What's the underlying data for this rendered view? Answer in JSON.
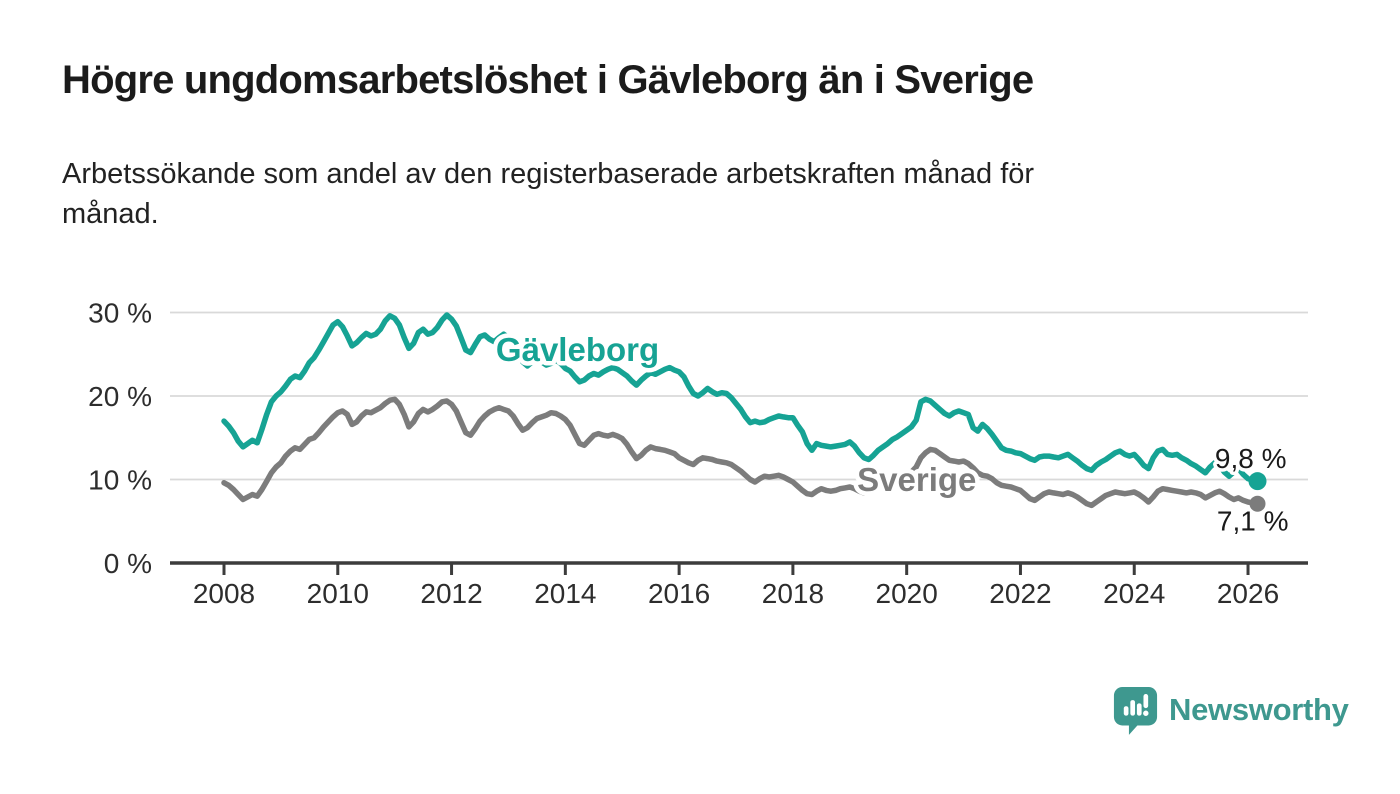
{
  "header": {
    "title": "Högre ungdomsarbetslöshet i Gävleborg än i Sverige",
    "subtitle": "Arbetssökande som andel av den registerbaserade arbetskraften månad för\nmånad."
  },
  "branding": {
    "logo_text": "Newsworthy",
    "logo_icon": "bar-chart-speech-bubble-icon",
    "accent_color": "#3e988f"
  },
  "chart_data": {
    "type": "line",
    "title": "Högre ungdomsarbetslöshet i Gävleborg än i Sverige",
    "subtitle": "Arbetssökande som andel av den registerbaserade arbetskraften månad för månad.",
    "unit": "%",
    "grid": "horizontal",
    "legend_position": "inline-labels",
    "xlim": [
      2007.1,
      2027.1
    ],
    "ylim": [
      0,
      32
    ],
    "x_ticks": [
      2008,
      2010,
      2012,
      2014,
      2016,
      2018,
      2020,
      2022,
      2024,
      2026
    ],
    "x_tick_labels": [
      "2008",
      "2010",
      "2012",
      "2014",
      "2016",
      "2018",
      "2020",
      "2022",
      "2024",
      "2026"
    ],
    "y_ticks": [
      30,
      20,
      10,
      0
    ],
    "y_tick_labels": [
      "30 %",
      "20 %",
      "10 %",
      "0 %"
    ],
    "x_start": 2008.0,
    "x_step_years": 0.08333,
    "series": [
      {
        "id": "gavleborg",
        "name": "Gävleborg",
        "color": "#16a394",
        "end_value": 9.8,
        "end_dot_radius": 9,
        "label_pos": {
          "t": 2012.78,
          "v": 24.2
        },
        "value_label": {
          "text": "9,8 %",
          "dx": 29,
          "dy": -13
        },
        "values": [
          17.0,
          16.4,
          15.6,
          14.6,
          13.9,
          14.3,
          14.7,
          14.4,
          16.0,
          17.8,
          19.3,
          20.0,
          20.5,
          21.2,
          22.0,
          22.4,
          22.2,
          23.0,
          24.0,
          24.6,
          25.5,
          26.5,
          27.5,
          28.5,
          28.9,
          28.3,
          27.2,
          26.0,
          26.4,
          27.0,
          27.5,
          27.2,
          27.4,
          28.0,
          29.0,
          29.6,
          29.3,
          28.5,
          27.0,
          25.7,
          26.3,
          27.6,
          28.0,
          27.4,
          27.6,
          28.2,
          29.1,
          29.7,
          29.2,
          28.4,
          27.0,
          25.5,
          25.2,
          26.2,
          27.1,
          27.3,
          26.8,
          26.5,
          27.0,
          27.4,
          27.0,
          26.3,
          25.2,
          24.1,
          23.6,
          24.1,
          24.5,
          24.1,
          23.7,
          23.9,
          24.3,
          23.9,
          23.3,
          23.0,
          22.3,
          21.7,
          21.9,
          22.4,
          22.7,
          22.5,
          22.9,
          23.2,
          23.4,
          23.2,
          22.8,
          22.4,
          21.8,
          21.3,
          21.9,
          22.4,
          22.8,
          22.6,
          22.9,
          23.2,
          23.4,
          23.1,
          22.9,
          22.3,
          21.2,
          20.3,
          20.0,
          20.4,
          20.9,
          20.5,
          20.2,
          20.4,
          20.3,
          19.8,
          19.1,
          18.4,
          17.5,
          16.8,
          17.0,
          16.8,
          16.9,
          17.2,
          17.4,
          17.6,
          17.5,
          17.4,
          17.4,
          16.5,
          15.7,
          14.3,
          13.5,
          14.3,
          14.1,
          14.0,
          13.9,
          14.0,
          14.1,
          14.2,
          14.5,
          14.0,
          13.2,
          12.6,
          12.4,
          12.9,
          13.5,
          13.9,
          14.3,
          14.8,
          15.1,
          15.5,
          15.9,
          16.3,
          17.1,
          19.3,
          19.6,
          19.4,
          18.9,
          18.4,
          17.9,
          17.6,
          18.0,
          18.2,
          18.0,
          17.8,
          16.2,
          15.8,
          16.6,
          16.1,
          15.4,
          14.6,
          13.8,
          13.5,
          13.4,
          13.2,
          13.1,
          12.8,
          12.5,
          12.3,
          12.7,
          12.8,
          12.8,
          12.7,
          12.6,
          12.8,
          13.0,
          12.6,
          12.2,
          11.7,
          11.3,
          11.1,
          11.7,
          12.1,
          12.4,
          12.8,
          13.2,
          13.4,
          13.0,
          12.8,
          13.0,
          12.4,
          11.7,
          11.3,
          12.6,
          13.4,
          13.6,
          13.0,
          12.9,
          13.0,
          12.6,
          12.3,
          11.9,
          11.6,
          11.2,
          10.8,
          11.5,
          12.0,
          11.7,
          10.9,
          10.4,
          10.9,
          11.3,
          10.6,
          10.1,
          9.9,
          9.8
        ]
      },
      {
        "id": "sverige",
        "name": "Sverige",
        "color": "#7c7c7c",
        "end_value": 7.1,
        "end_dot_radius": 8,
        "label_pos": {
          "t": 2019.13,
          "v": 8.6
        },
        "value_label": {
          "text": "7,1 %",
          "dx": 31,
          "dy": 27
        },
        "values": [
          9.6,
          9.3,
          8.8,
          8.2,
          7.6,
          7.9,
          8.2,
          8.0,
          8.8,
          9.8,
          10.8,
          11.5,
          12.0,
          12.8,
          13.4,
          13.8,
          13.6,
          14.2,
          14.8,
          15.0,
          15.6,
          16.3,
          16.9,
          17.5,
          18.0,
          18.2,
          17.8,
          16.6,
          16.9,
          17.6,
          18.1,
          18.0,
          18.3,
          18.6,
          19.1,
          19.5,
          19.6,
          19.0,
          17.8,
          16.3,
          16.9,
          17.9,
          18.4,
          18.1,
          18.4,
          18.8,
          19.3,
          19.4,
          19.0,
          18.2,
          16.9,
          15.6,
          15.3,
          16.1,
          17.0,
          17.6,
          18.1,
          18.4,
          18.6,
          18.4,
          18.2,
          17.6,
          16.7,
          15.9,
          16.2,
          16.8,
          17.3,
          17.5,
          17.7,
          18.0,
          17.9,
          17.6,
          17.2,
          16.5,
          15.4,
          14.3,
          14.1,
          14.7,
          15.3,
          15.5,
          15.3,
          15.2,
          15.4,
          15.2,
          14.9,
          14.2,
          13.3,
          12.5,
          12.9,
          13.5,
          13.9,
          13.7,
          13.6,
          13.5,
          13.3,
          13.1,
          12.6,
          12.3,
          12.0,
          11.8,
          12.3,
          12.6,
          12.5,
          12.4,
          12.2,
          12.1,
          12.0,
          11.8,
          11.4,
          11.0,
          10.5,
          10.0,
          9.7,
          10.1,
          10.4,
          10.3,
          10.4,
          10.5,
          10.3,
          10.0,
          9.7,
          9.2,
          8.7,
          8.3,
          8.2,
          8.6,
          8.9,
          8.7,
          8.6,
          8.7,
          8.9,
          9.0,
          9.1,
          8.9,
          8.6,
          8.4,
          8.6,
          8.9,
          9.2,
          9.3,
          9.5,
          9.8,
          10.1,
          10.4,
          10.6,
          10.9,
          11.5,
          12.6,
          13.2,
          13.6,
          13.5,
          13.1,
          12.7,
          12.3,
          12.2,
          12.1,
          12.2,
          11.9,
          11.4,
          10.8,
          10.5,
          10.4,
          10.1,
          9.6,
          9.3,
          9.2,
          9.1,
          8.9,
          8.7,
          8.2,
          7.7,
          7.5,
          7.9,
          8.3,
          8.5,
          8.4,
          8.3,
          8.2,
          8.4,
          8.2,
          7.9,
          7.5,
          7.1,
          6.9,
          7.3,
          7.7,
          8.1,
          8.3,
          8.5,
          8.4,
          8.3,
          8.4,
          8.5,
          8.2,
          7.8,
          7.3,
          7.9,
          8.6,
          8.9,
          8.8,
          8.7,
          8.6,
          8.5,
          8.4,
          8.5,
          8.4,
          8.2,
          7.8,
          8.1,
          8.4,
          8.6,
          8.3,
          7.9,
          7.6,
          7.8,
          7.5,
          7.3,
          7.2,
          7.1
        ]
      }
    ]
  }
}
